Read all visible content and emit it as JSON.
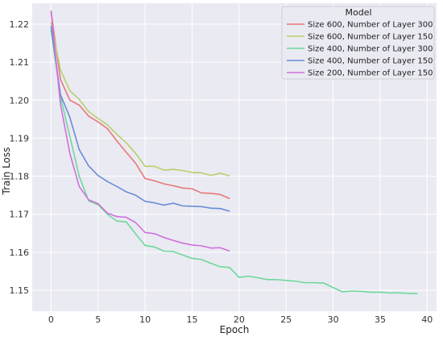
{
  "chart_data": {
    "type": "line",
    "title": "",
    "xlabel": "Epoch",
    "ylabel": "Train Loss",
    "xlim": [
      -2,
      41
    ],
    "ylim": [
      1.1445,
      1.2255
    ],
    "xticks": [
      0,
      5,
      10,
      15,
      20,
      25,
      30,
      35,
      40
    ],
    "yticks": [
      1.15,
      1.16,
      1.17,
      1.18,
      1.19,
      1.2,
      1.21,
      1.22
    ],
    "ytick_labels": [
      "1.15",
      "1.16",
      "1.17",
      "1.18",
      "1.19",
      "1.20",
      "1.21",
      "1.22"
    ],
    "grid": true,
    "background": "#eaeaf2",
    "legend": {
      "title": "Model",
      "placement": "top-right"
    },
    "series": [
      {
        "name": "Size 600, Number of Layer 300",
        "color": "#e8787a",
        "x": [
          0,
          1,
          2,
          3,
          4,
          5,
          6,
          7,
          8,
          9,
          10,
          11,
          12,
          13,
          14,
          15,
          16,
          17,
          18,
          19
        ],
        "values": [
          1.2235,
          1.2055,
          1.2,
          1.1987,
          1.1958,
          1.1943,
          1.1925,
          1.1893,
          1.1863,
          1.1834,
          1.1794,
          1.1788,
          1.178,
          1.1775,
          1.1769,
          1.1767,
          1.1756,
          1.1755,
          1.1752,
          1.1741
        ]
      },
      {
        "name": "Size 600, Number of Layer 150",
        "color": "#b8d06a",
        "x": [
          0,
          1,
          2,
          3,
          4,
          5,
          6,
          7,
          8,
          9,
          10,
          11,
          12,
          13,
          14,
          15,
          16,
          17,
          18,
          19
        ],
        "values": [
          1.2205,
          1.208,
          1.2025,
          1.2002,
          1.197,
          1.1952,
          1.1935,
          1.191,
          1.1888,
          1.186,
          1.1826,
          1.1826,
          1.1816,
          1.1818,
          1.1815,
          1.181,
          1.1809,
          1.1802,
          1.1808,
          1.1801
        ]
      },
      {
        "name": "Size 400, Number of Layer 300",
        "color": "#6dd89b",
        "x": [
          0,
          1,
          2,
          3,
          4,
          5,
          6,
          7,
          8,
          9,
          10,
          11,
          12,
          13,
          14,
          15,
          16,
          17,
          18,
          19,
          20,
          21,
          22,
          23,
          24,
          25,
          26,
          27,
          28,
          29,
          30,
          31,
          32,
          33,
          34,
          35,
          36,
          37,
          38,
          39
        ],
        "values": [
          1.2185,
          1.201,
          1.1905,
          1.18,
          1.1735,
          1.1725,
          1.17,
          1.1682,
          1.168,
          1.1648,
          1.1618,
          1.1614,
          1.1603,
          1.1602,
          1.1593,
          1.1584,
          1.1581,
          1.1571,
          1.1562,
          1.156,
          1.1534,
          1.1537,
          1.1533,
          1.1528,
          1.1528,
          1.1526,
          1.1524,
          1.152,
          1.152,
          1.1519,
          1.1507,
          1.1496,
          1.1498,
          1.1497,
          1.1495,
          1.1495,
          1.1493,
          1.1493,
          1.1492,
          1.1491
        ]
      },
      {
        "name": "Size 400, Number of Layer 150",
        "color": "#6a8cd6",
        "x": [
          0,
          1,
          2,
          3,
          4,
          5,
          6,
          7,
          8,
          9,
          10,
          11,
          12,
          13,
          14,
          15,
          16,
          17,
          18,
          19
        ],
        "values": [
          1.2195,
          1.2015,
          1.1955,
          1.187,
          1.1827,
          1.1802,
          1.1786,
          1.1773,
          1.1759,
          1.175,
          1.1734,
          1.173,
          1.1724,
          1.1729,
          1.1722,
          1.1721,
          1.172,
          1.1716,
          1.1715,
          1.1708
        ]
      },
      {
        "name": "Size 200, Number of Layer 150",
        "color": "#cf70dc",
        "x": [
          0,
          1,
          2,
          3,
          4,
          5,
          6,
          7,
          8,
          9,
          10,
          11,
          12,
          13,
          14,
          15,
          16,
          17,
          18,
          19
        ],
        "values": [
          1.2235,
          1.199,
          1.186,
          1.1773,
          1.1738,
          1.1728,
          1.1703,
          1.1694,
          1.1692,
          1.1678,
          1.1652,
          1.1649,
          1.1639,
          1.1631,
          1.1624,
          1.1619,
          1.1617,
          1.1611,
          1.1612,
          1.1603
        ]
      }
    ]
  }
}
